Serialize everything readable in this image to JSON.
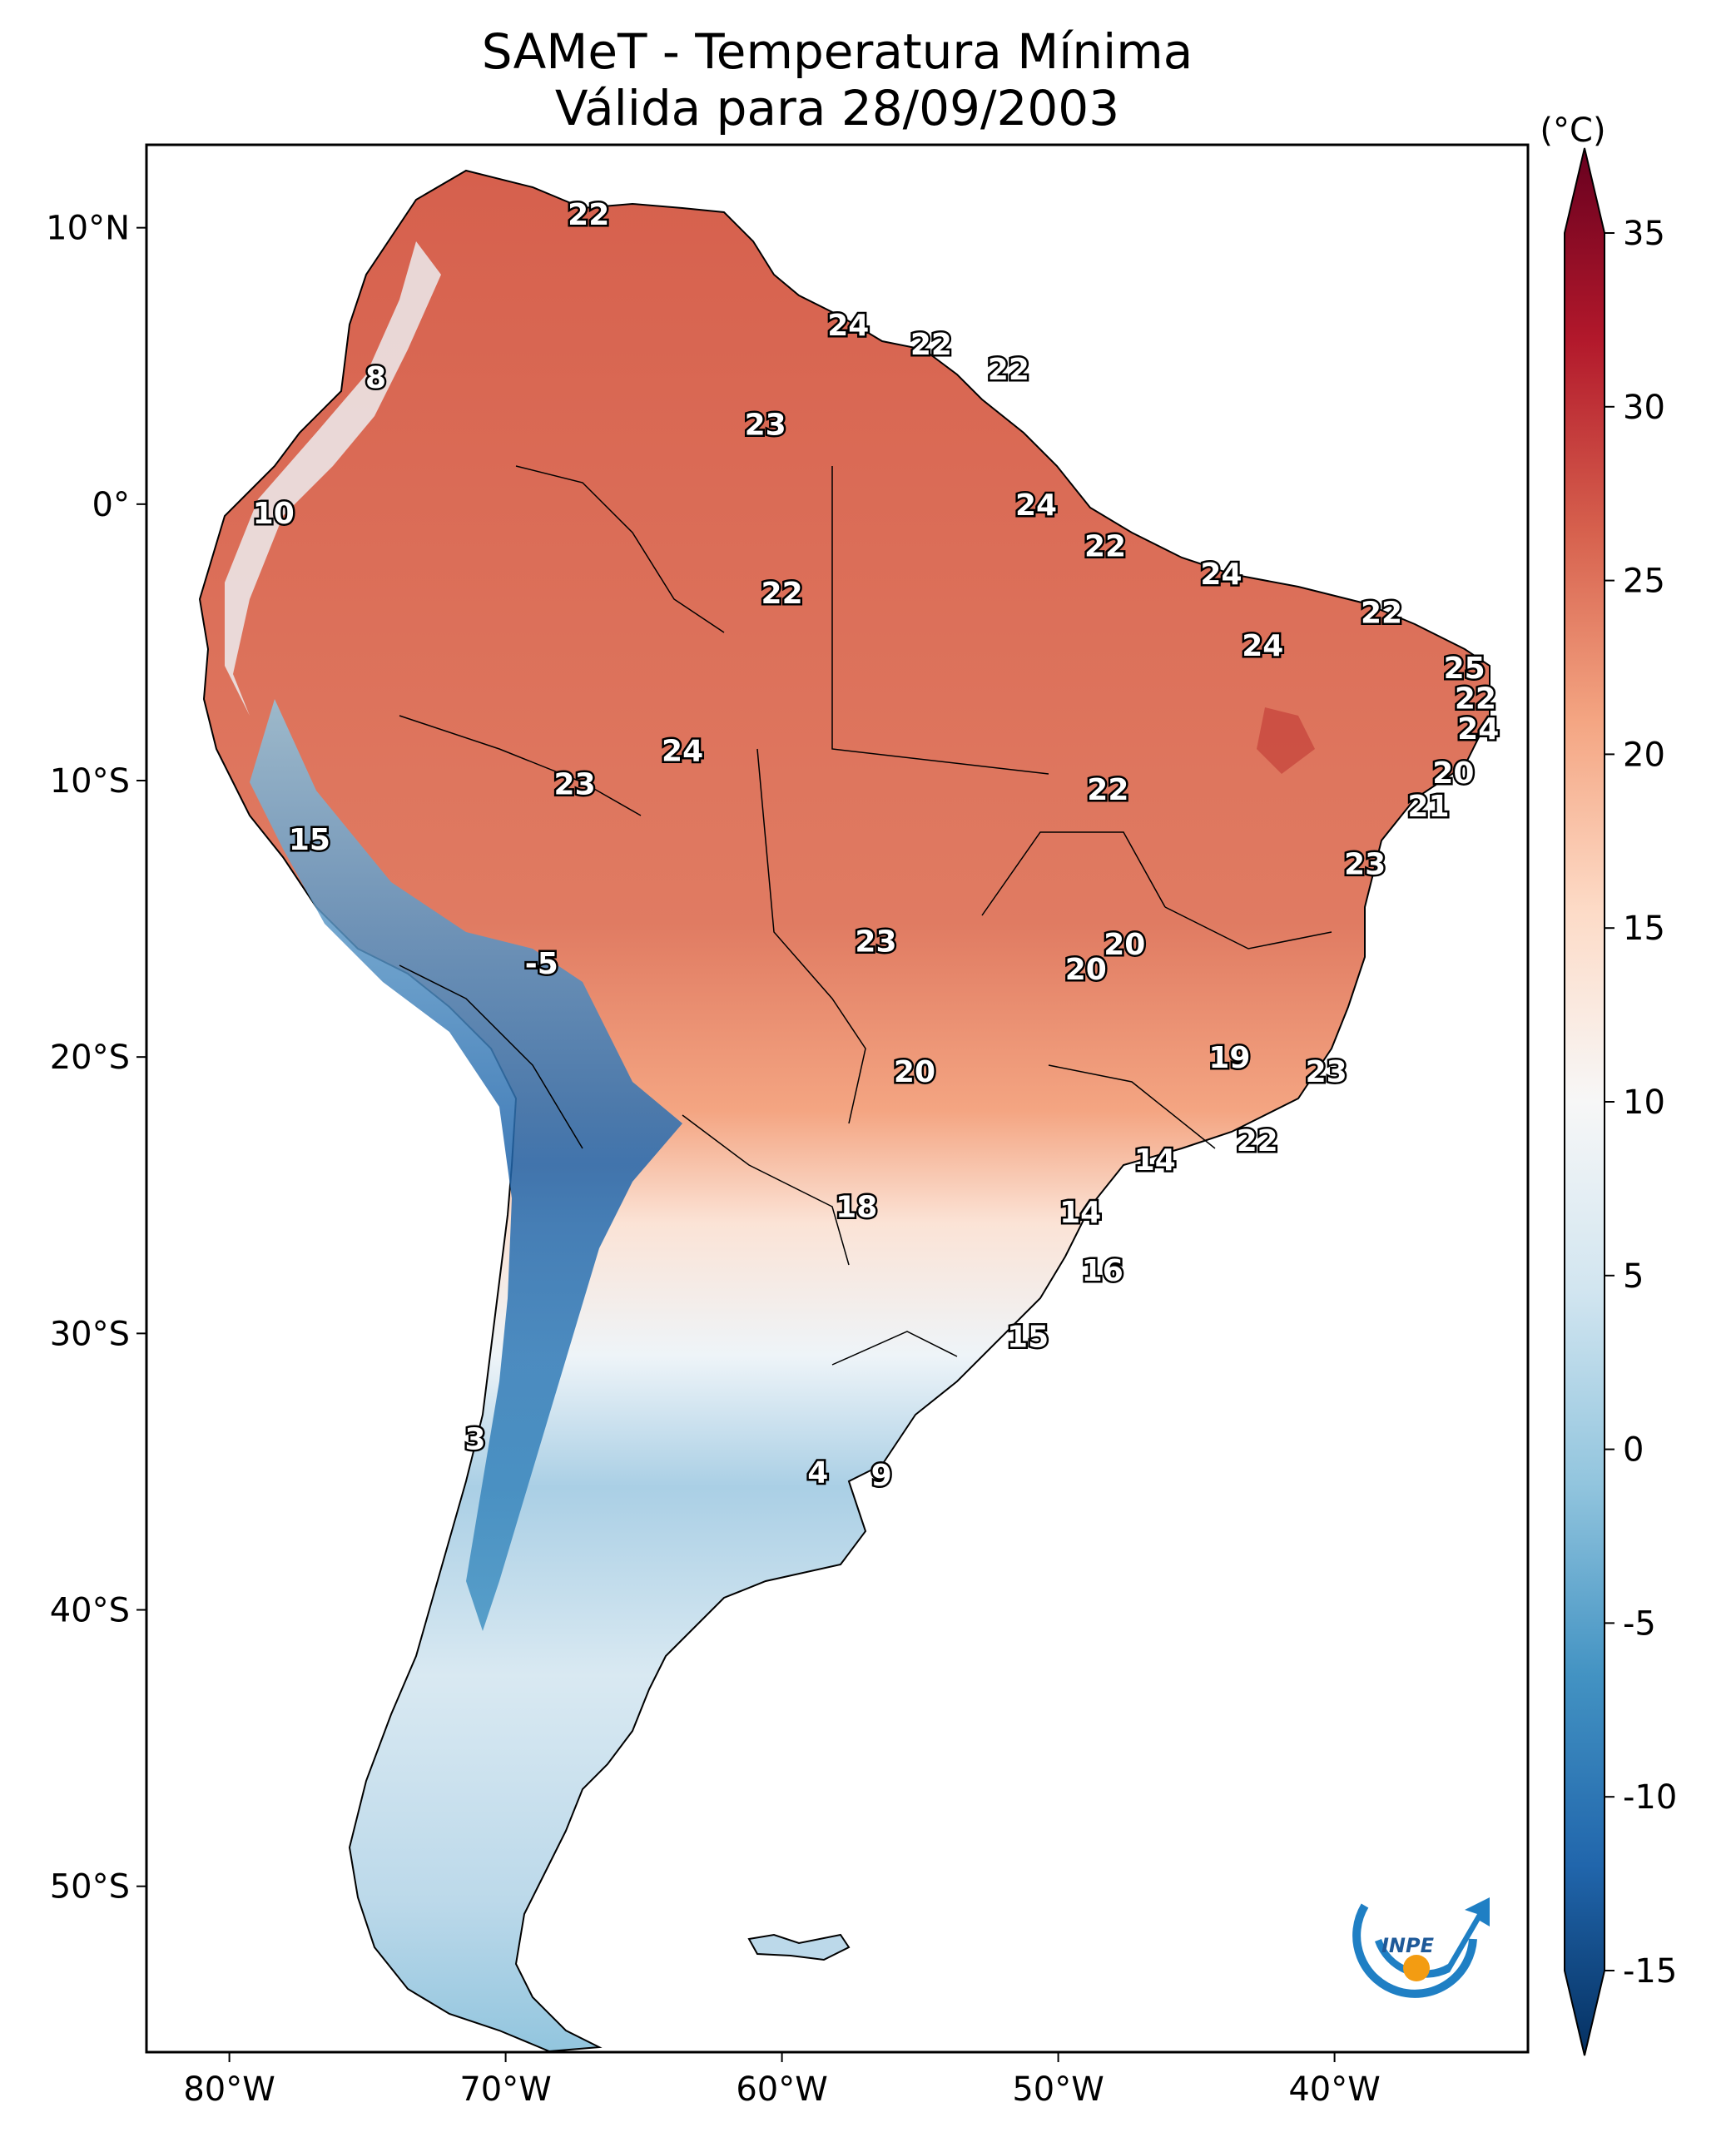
{
  "title": "SAMeT - Temperatura Mínima",
  "subtitle": "Válida para 28/09/2003",
  "colorbar": {
    "unit": "(°C)",
    "min": -15,
    "max": 35,
    "ticks": [
      "35",
      "30",
      "25",
      "20",
      "15",
      "10",
      "5",
      "0",
      "-5",
      "-10",
      "-15"
    ],
    "colors": [
      "#053061",
      "#2166ac",
      "#4393c3",
      "#92c5de",
      "#d1e5f0",
      "#f7f7f7",
      "#fddbc7",
      "#f4a582",
      "#d6604d",
      "#b2182b",
      "#67001f"
    ]
  },
  "axes": {
    "lat_ticks": [
      "10°N",
      "0°",
      "10°S",
      "20°S",
      "30°S",
      "40°S",
      "50°S"
    ],
    "lon_ticks": [
      "80°W",
      "70°W",
      "60°W",
      "50°W",
      "40°W"
    ]
  },
  "logo": {
    "text": "INPE"
  },
  "labels": [
    {
      "value": "22",
      "lon": -67.0,
      "lat": 10.5
    },
    {
      "value": "24",
      "lon": -57.6,
      "lat": 6.5
    },
    {
      "value": "22",
      "lon": -54.6,
      "lat": 5.8
    },
    {
      "value": "22",
      "lon": -51.8,
      "lat": 4.9
    },
    {
      "value": "8",
      "lon": -74.7,
      "lat": 4.6
    },
    {
      "value": "23",
      "lon": -60.6,
      "lat": 2.9
    },
    {
      "value": "24",
      "lon": -50.8,
      "lat": 0.0
    },
    {
      "value": "10",
      "lon": -78.4,
      "lat": -0.3
    },
    {
      "value": "22",
      "lon": -48.3,
      "lat": -1.5
    },
    {
      "value": "24",
      "lon": -44.1,
      "lat": -2.5
    },
    {
      "value": "22",
      "lon": -60.0,
      "lat": -3.2
    },
    {
      "value": "22",
      "lon": -38.3,
      "lat": -3.9
    },
    {
      "value": "24",
      "lon": -42.6,
      "lat": -5.1
    },
    {
      "value": "25",
      "lon": -35.3,
      "lat": -5.9
    },
    {
      "value": "22",
      "lon": -34.9,
      "lat": -7.0
    },
    {
      "value": "24",
      "lon": -34.8,
      "lat": -8.1
    },
    {
      "value": "24",
      "lon": -63.6,
      "lat": -8.9
    },
    {
      "value": "20",
      "lon": -35.7,
      "lat": -9.7
    },
    {
      "value": "23",
      "lon": -67.5,
      "lat": -10.1
    },
    {
      "value": "22",
      "lon": -48.2,
      "lat": -10.3
    },
    {
      "value": "21",
      "lon": -36.6,
      "lat": -10.9
    },
    {
      "value": "15",
      "lon": -77.1,
      "lat": -12.1
    },
    {
      "value": "23",
      "lon": -38.9,
      "lat": -13.0
    },
    {
      "value": "23",
      "lon": -56.6,
      "lat": -15.8
    },
    {
      "value": "20",
      "lon": -47.6,
      "lat": -15.9
    },
    {
      "value": "20",
      "lon": -49.0,
      "lat": -16.8
    },
    {
      "value": "-5",
      "lon": -68.7,
      "lat": -16.6
    },
    {
      "value": "19",
      "lon": -43.8,
      "lat": -20.0
    },
    {
      "value": "20",
      "lon": -55.2,
      "lat": -20.5
    },
    {
      "value": "23",
      "lon": -40.3,
      "lat": -20.5
    },
    {
      "value": "22",
      "lon": -42.8,
      "lat": -23.0
    },
    {
      "value": "14",
      "lon": -46.5,
      "lat": -23.7
    },
    {
      "value": "18",
      "lon": -57.3,
      "lat": -25.4
    },
    {
      "value": "14",
      "lon": -49.2,
      "lat": -25.6
    },
    {
      "value": "16",
      "lon": -48.4,
      "lat": -27.7
    },
    {
      "value": "15",
      "lon": -51.1,
      "lat": -30.1
    },
    {
      "value": "3",
      "lon": -71.1,
      "lat": -33.8
    },
    {
      "value": "4",
      "lon": -58.7,
      "lat": -35.0
    },
    {
      "value": "9",
      "lon": -56.4,
      "lat": -35.1
    }
  ]
}
